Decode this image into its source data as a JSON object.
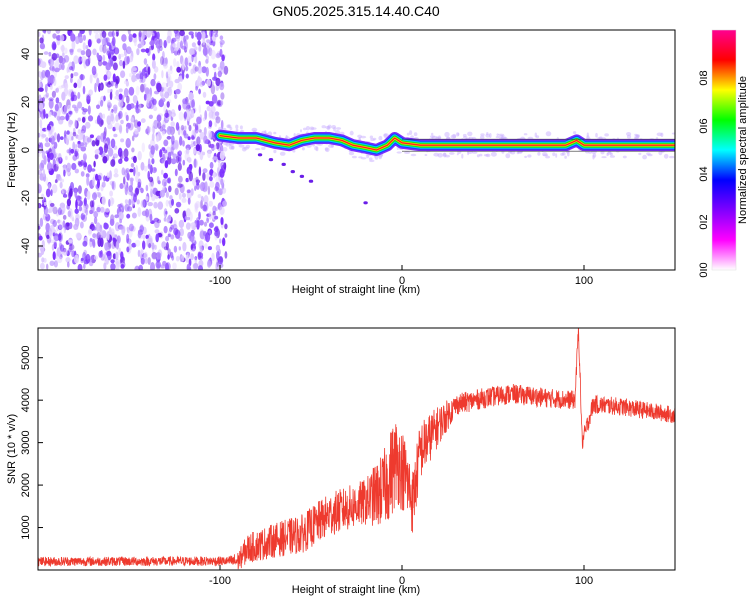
{
  "title": "GN05.2025.315.14.40.C40",
  "chart_data": [
    {
      "type": "heatmap",
      "name": "spectrogram",
      "xlabel": "Height of straight line (km)",
      "ylabel": "Frequency (Hz)",
      "xlim": [
        -200,
        150
      ],
      "ylim": [
        -50,
        50
      ],
      "xticks": [
        -100,
        0,
        100
      ],
      "yticks": [
        -40,
        -20,
        0,
        20,
        40
      ],
      "noise_region_x": [
        -200,
        -100
      ],
      "noise_density": "dense",
      "signal_track": [
        {
          "x": -100,
          "f": 6
        },
        {
          "x": -90,
          "f": 5
        },
        {
          "x": -80,
          "f": 5
        },
        {
          "x": -70,
          "f": 3
        },
        {
          "x": -62,
          "f": 2
        },
        {
          "x": -55,
          "f": 4
        },
        {
          "x": -48,
          "f": 5
        },
        {
          "x": -40,
          "f": 5
        },
        {
          "x": -33,
          "f": 4
        },
        {
          "x": -27,
          "f": 2
        },
        {
          "x": -20,
          "f": 1
        },
        {
          "x": -14,
          "f": 0
        },
        {
          "x": -8,
          "f": 2
        },
        {
          "x": -4,
          "f": 5
        },
        {
          "x": 0,
          "f": 3
        },
        {
          "x": 10,
          "f": 2
        },
        {
          "x": 30,
          "f": 2
        },
        {
          "x": 60,
          "f": 2
        },
        {
          "x": 90,
          "f": 2
        },
        {
          "x": 96,
          "f": 4
        },
        {
          "x": 100,
          "f": 2
        },
        {
          "x": 150,
          "f": 2
        }
      ]
    },
    {
      "type": "line",
      "name": "snr",
      "xlabel": "Height of straight line (km)",
      "ylabel": "SNR (10 * v/v)",
      "xlim": [
        -200,
        150
      ],
      "ylim": [
        0,
        5700
      ],
      "xticks": [
        -100,
        0,
        100
      ],
      "yticks": [
        1000,
        2000,
        3000,
        4000,
        5000
      ],
      "color": "#ee3a2e",
      "series": [
        {
          "x": -200,
          "y": 200
        },
        {
          "x": -90,
          "y": 210
        },
        {
          "x": -85,
          "y": 500
        },
        {
          "x": -70,
          "y": 700
        },
        {
          "x": -55,
          "y": 850
        },
        {
          "x": -40,
          "y": 1300
        },
        {
          "x": -30,
          "y": 1450
        },
        {
          "x": -20,
          "y": 1600
        },
        {
          "x": -10,
          "y": 1900
        },
        {
          "x": -3,
          "y": 2600
        },
        {
          "x": 2,
          "y": 2200
        },
        {
          "x": 6,
          "y": 1600
        },
        {
          "x": 10,
          "y": 2800
        },
        {
          "x": 20,
          "y": 3400
        },
        {
          "x": 30,
          "y": 3900
        },
        {
          "x": 45,
          "y": 4050
        },
        {
          "x": 60,
          "y": 4150
        },
        {
          "x": 80,
          "y": 4050
        },
        {
          "x": 95,
          "y": 4000
        },
        {
          "x": 97,
          "y": 5700
        },
        {
          "x": 99,
          "y": 3000
        },
        {
          "x": 105,
          "y": 3900
        },
        {
          "x": 120,
          "y": 3850
        },
        {
          "x": 135,
          "y": 3750
        },
        {
          "x": 150,
          "y": 3650
        }
      ],
      "noise_amplitude": [
        {
          "x": -200,
          "a": 110
        },
        {
          "x": -95,
          "a": 110
        },
        {
          "x": -85,
          "a": 350
        },
        {
          "x": -45,
          "a": 500
        },
        {
          "x": -20,
          "a": 550
        },
        {
          "x": -5,
          "a": 1100
        },
        {
          "x": 10,
          "a": 700
        },
        {
          "x": 30,
          "a": 250
        },
        {
          "x": 150,
          "a": 200
        }
      ]
    }
  ],
  "colorbar": {
    "label": "Normalized spectral amplitude",
    "ticks": [
      "0.0",
      "0.2",
      "0.4",
      "0.6",
      "0.8"
    ],
    "range": [
      0,
      1
    ],
    "colors": [
      "#ffffff",
      "#ff00ff",
      "#7f00ff",
      "#0000ff",
      "#00ffff",
      "#00ff00",
      "#ffff00",
      "#ff0000",
      "#ff0090"
    ]
  }
}
